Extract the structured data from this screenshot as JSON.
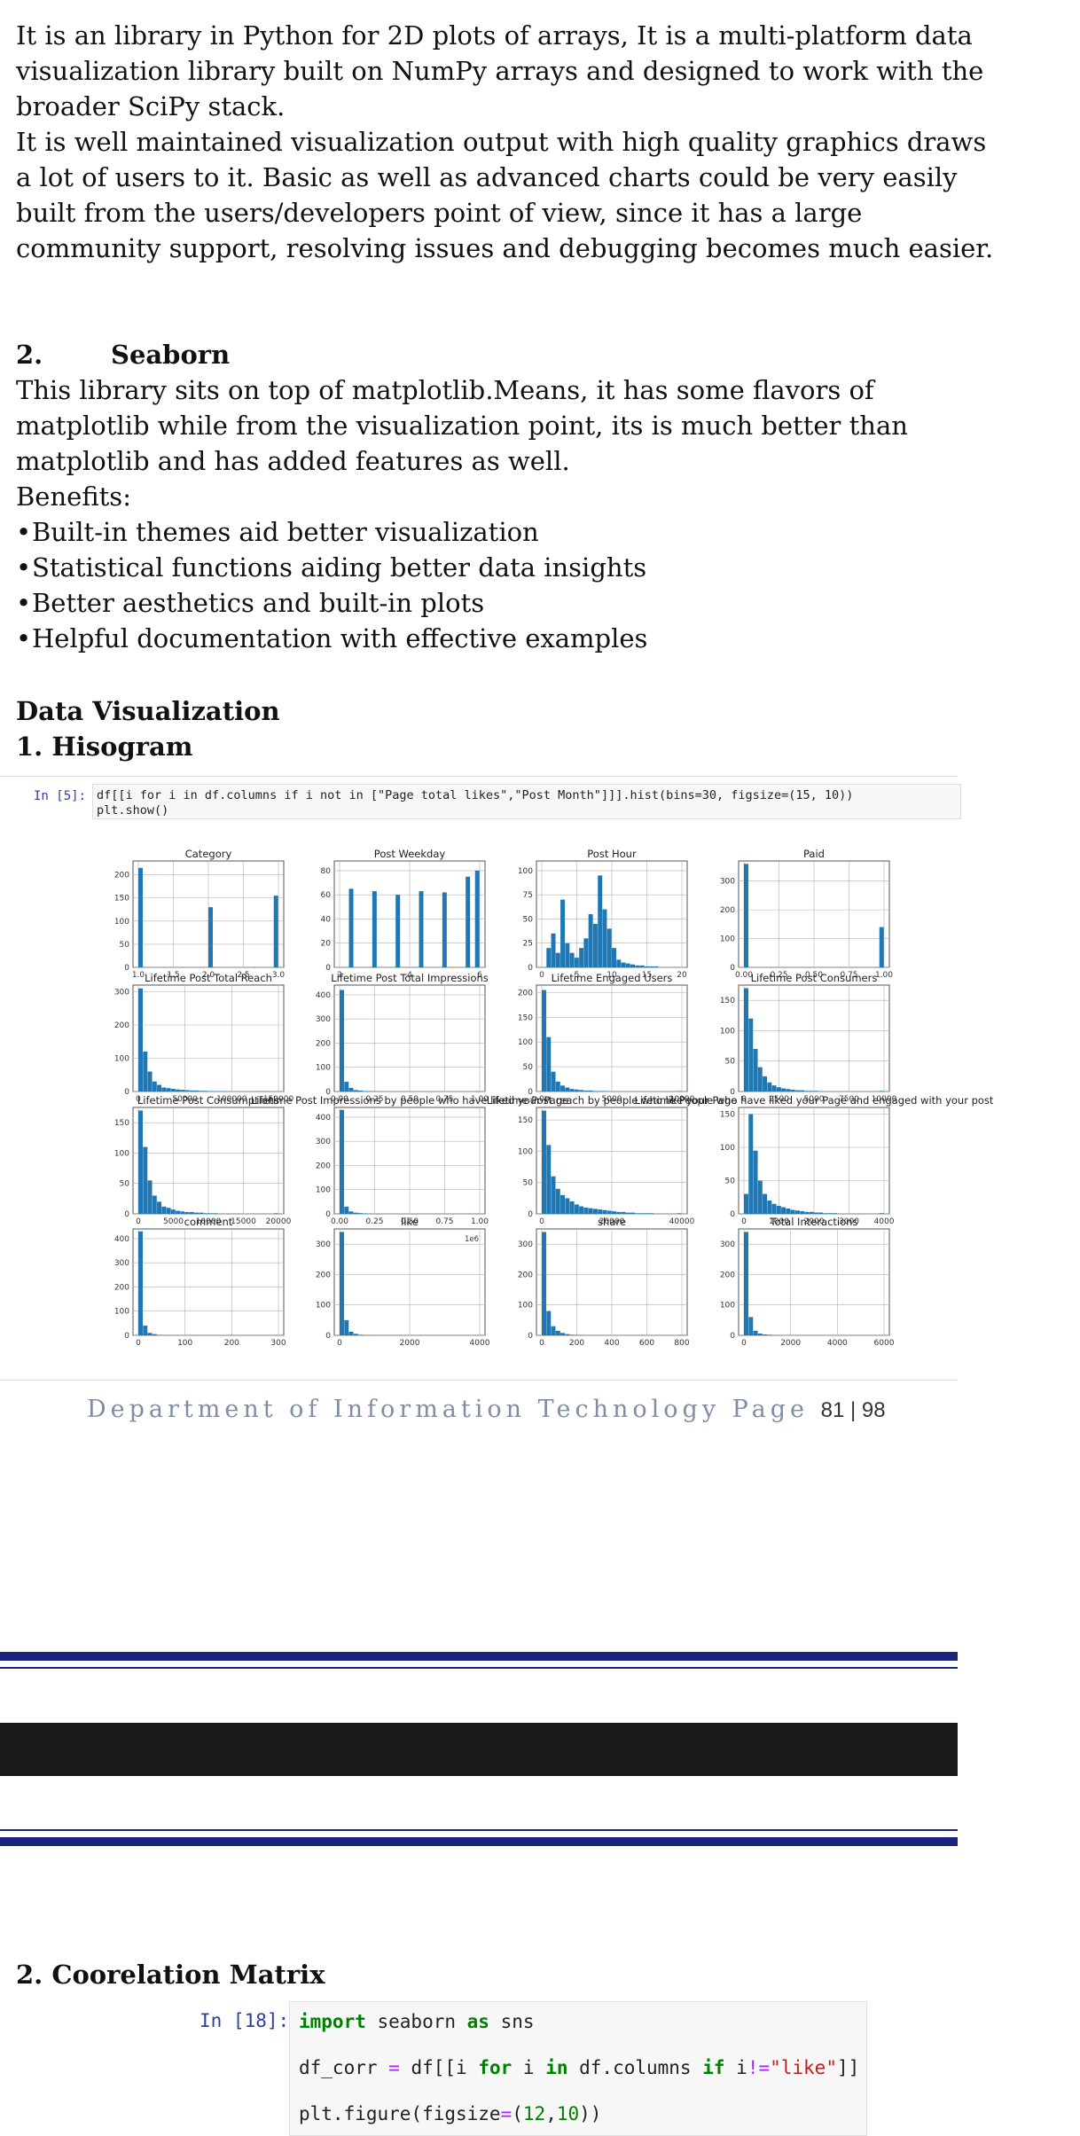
{
  "intro": {
    "lines": [
      "It is an library in Python for 2D plots of arrays, It is a multi-platform data",
      "visualization library built on NumPy arrays and designed to work with the",
      "broader SciPy stack.",
      "It is well maintained visualization output with high quality graphics draws",
      "a lot of users to it. Basic as well as advanced charts could be very easily",
      "built from the users/developers point of view, since it has a large",
      "community support, resolving issues and debugging becomes much easier."
    ]
  },
  "seaborn": {
    "number": "2.",
    "title": "Seaborn",
    "lines": [
      "This library sits on top of matplotlib.Means, it has some flavors of",
      "matplotlib while from the visualization point, its is much better than",
      "matplotlib and has added features as well."
    ],
    "benefits_label": "Benefits:",
    "benefits": [
      "Built-in themes aid better visualization",
      "Statistical functions aiding better data insights",
      "Better aesthetics and built-in plots",
      "Helpful documentation with effective examples"
    ]
  },
  "data_viz": {
    "title": "Data Visualization",
    "subtitle": "1. Hisogram"
  },
  "notebook": {
    "prompt": "In [5]:",
    "code_line1": "df[[i for i in df.columns if i not in [\"Page total likes\",\"Post Month\"]]].hist(bins=30, figsize=(15, 10))",
    "code_line2": "plt.show()"
  },
  "chart_data": {
    "type": "bar",
    "panels": [
      {
        "title": "Category",
        "x_ticks": [
          "1.0",
          "1.5",
          "2.0",
          "2.5",
          "3.0"
        ],
        "y_ticks": [
          "0",
          "50",
          "100",
          "150",
          "200"
        ],
        "ymax": 230,
        "values": [
          215,
          0,
          0,
          0,
          0,
          0,
          0,
          0,
          0,
          0,
          0,
          0,
          0,
          0,
          0,
          130,
          0,
          0,
          0,
          0,
          0,
          0,
          0,
          0,
          0,
          0,
          0,
          0,
          0,
          155
        ]
      },
      {
        "title": "Post Weekday",
        "x_ticks": [
          "2",
          "4",
          "6"
        ],
        "y_ticks": [
          "0",
          "20",
          "40",
          "60",
          "80"
        ],
        "ymax": 88,
        "values": [
          0,
          0,
          65,
          0,
          0,
          0,
          0,
          63,
          0,
          0,
          0,
          0,
          60,
          0,
          0,
          0,
          0,
          63,
          0,
          0,
          0,
          0,
          62,
          0,
          0,
          0,
          0,
          75,
          0,
          80
        ]
      },
      {
        "title": "Post Hour",
        "x_ticks": [
          "0",
          "5",
          "10",
          "15",
          "20"
        ],
        "y_ticks": [
          "0",
          "25",
          "50",
          "75",
          "100"
        ],
        "ymax": 110,
        "values": [
          0,
          20,
          35,
          15,
          70,
          25,
          15,
          10,
          20,
          30,
          55,
          45,
          95,
          60,
          40,
          20,
          8,
          5,
          4,
          3,
          2,
          2,
          1,
          1,
          1,
          0,
          0,
          0,
          0,
          0
        ]
      },
      {
        "title": "Paid",
        "x_ticks": [
          "0.00",
          "0.25",
          "0.50",
          "0.75",
          "1.00"
        ],
        "y_ticks": [
          "0",
          "100",
          "200",
          "300"
        ],
        "ymax": 370,
        "values": [
          360,
          0,
          0,
          0,
          0,
          0,
          0,
          0,
          0,
          0,
          0,
          0,
          0,
          0,
          0,
          0,
          0,
          0,
          0,
          0,
          0,
          0,
          0,
          0,
          0,
          0,
          0,
          0,
          0,
          140
        ]
      },
      {
        "title": "Lifetime Post Total Reach",
        "x_ticks": [
          "0",
          "50000",
          "100000",
          "150000"
        ],
        "y_ticks": [
          "0",
          "100",
          "200",
          "300"
        ],
        "ymax": 320,
        "values": [
          310,
          120,
          60,
          30,
          20,
          12,
          10,
          8,
          6,
          5,
          4,
          3,
          3,
          2,
          2,
          1,
          1,
          1,
          1,
          0,
          0,
          0,
          0,
          0,
          0,
          0,
          1,
          0,
          0,
          0
        ]
      },
      {
        "title": "Lifetime Post Total Impressions",
        "x_ticks": [
          "0.00",
          "0.25",
          "0.50",
          "0.75",
          "1.00"
        ],
        "y_ticks": [
          "0",
          "100",
          "200",
          "300",
          "400"
        ],
        "ymax": 440,
        "values": [
          420,
          40,
          15,
          6,
          4,
          2,
          1,
          1,
          0,
          0,
          0,
          0,
          0,
          0,
          0,
          0,
          0,
          0,
          0,
          0,
          0,
          0,
          0,
          0,
          0,
          0,
          0,
          0,
          0,
          1
        ]
      },
      {
        "title": "Lifetime Engaged Users",
        "x_ticks": [
          "0",
          "5000",
          "10000"
        ],
        "y_ticks": [
          "0",
          "50",
          "100",
          "150",
          "200"
        ],
        "ymax": 215,
        "values": [
          205,
          110,
          40,
          20,
          12,
          8,
          5,
          4,
          3,
          2,
          2,
          1,
          1,
          1,
          0,
          0,
          0,
          0,
          0,
          0,
          0,
          0,
          0,
          0,
          0,
          0,
          0,
          0,
          0,
          1
        ]
      },
      {
        "title": "Lifetime Post Consumers",
        "x_ticks": [
          "0",
          "2500",
          "5000",
          "7500",
          "10000"
        ],
        "y_ticks": [
          "0",
          "50",
          "100",
          "150"
        ],
        "ymax": 175,
        "values": [
          170,
          120,
          70,
          40,
          25,
          15,
          10,
          7,
          5,
          4,
          3,
          2,
          2,
          1,
          1,
          1,
          0,
          0,
          0,
          0,
          0,
          0,
          0,
          0,
          0,
          0,
          0,
          0,
          0,
          1
        ]
      },
      {
        "title": "Lifetime Post Consumptions",
        "x_ticks": [
          "0",
          "5000",
          "10000",
          "15000",
          "20000"
        ],
        "y_ticks": [
          "0",
          "50",
          "100",
          "150"
        ],
        "ymax": 175,
        "values": [
          170,
          110,
          55,
          30,
          20,
          12,
          10,
          7,
          5,
          4,
          3,
          3,
          2,
          2,
          1,
          1,
          1,
          0,
          0,
          0,
          0,
          0,
          0,
          0,
          0,
          0,
          0,
          0,
          0,
          1
        ]
      },
      {
        "title": "Lifetime Post Impressions by people who have liked your Page",
        "x_ticks": [
          "0.00",
          "0.25",
          "0.50",
          "0.75",
          "1.00"
        ],
        "y_ticks": [
          "0",
          "100",
          "200",
          "300",
          "400"
        ],
        "ymax": 440,
        "values": [
          430,
          30,
          10,
          5,
          3,
          2,
          1,
          0,
          0,
          0,
          0,
          0,
          0,
          0,
          0,
          0,
          0,
          0,
          0,
          0,
          0,
          0,
          0,
          0,
          0,
          0,
          0,
          0,
          0,
          1
        ]
      },
      {
        "title": "Lifetime Post reach by people who like your Page",
        "x_ticks": [
          "0",
          "20000",
          "40000"
        ],
        "y_ticks": [
          "0",
          "50",
          "100",
          "150"
        ],
        "ymax": 170,
        "values": [
          165,
          110,
          60,
          40,
          30,
          25,
          20,
          15,
          12,
          10,
          9,
          8,
          7,
          6,
          5,
          4,
          3,
          3,
          2,
          2,
          1,
          1,
          1,
          1,
          0,
          0,
          0,
          0,
          0,
          1
        ]
      },
      {
        "title": "Lifetime People who have liked your Page and engaged with your post",
        "x_ticks": [
          "0",
          "1000",
          "2000",
          "3000",
          "4000"
        ],
        "y_ticks": [
          "0",
          "50",
          "100",
          "150"
        ],
        "ymax": 160,
        "values": [
          30,
          150,
          95,
          50,
          30,
          20,
          15,
          12,
          10,
          8,
          6,
          5,
          4,
          3,
          3,
          2,
          2,
          1,
          1,
          1,
          0,
          0,
          0,
          0,
          0,
          0,
          0,
          0,
          0,
          1
        ]
      },
      {
        "title": "comment",
        "x_ticks": [
          "0",
          "100",
          "200",
          "300"
        ],
        "y_ticks": [
          "0",
          "100",
          "200",
          "300",
          "400"
        ],
        "ymax": 440,
        "values": [
          430,
          40,
          10,
          5,
          2,
          1,
          1,
          0,
          0,
          0,
          0,
          0,
          0,
          0,
          0,
          0,
          0,
          0,
          0,
          0,
          0,
          0,
          0,
          0,
          0,
          0,
          0,
          0,
          0,
          1
        ]
      },
      {
        "title": "like",
        "x_ticks": [
          "0",
          "2000",
          "4000"
        ],
        "y_ticks": [
          "0",
          "100",
          "200",
          "300"
        ],
        "ymax": 350,
        "values": [
          340,
          50,
          12,
          5,
          2,
          1,
          1,
          0,
          0,
          0,
          0,
          0,
          0,
          0,
          0,
          0,
          0,
          0,
          0,
          0,
          0,
          0,
          0,
          0,
          0,
          0,
          0,
          0,
          0,
          1
        ]
      },
      {
        "title": "share",
        "x_ticks": [
          "0",
          "200",
          "400",
          "600",
          "800"
        ],
        "y_ticks": [
          "0",
          "100",
          "200",
          "300"
        ],
        "ymax": 350,
        "values": [
          340,
          80,
          30,
          15,
          8,
          4,
          2,
          1,
          1,
          0,
          0,
          0,
          0,
          0,
          0,
          0,
          0,
          0,
          0,
          0,
          0,
          0,
          0,
          0,
          0,
          0,
          0,
          0,
          0,
          1
        ]
      },
      {
        "title": "Total Interactions",
        "x_ticks": [
          "0",
          "2000",
          "4000",
          "6000"
        ],
        "y_ticks": [
          "0",
          "100",
          "200",
          "300"
        ],
        "ymax": 350,
        "values": [
          340,
          60,
          15,
          6,
          3,
          2,
          1,
          0,
          0,
          0,
          0,
          0,
          0,
          0,
          0,
          0,
          0,
          0,
          0,
          0,
          0,
          0,
          0,
          0,
          0,
          0,
          0,
          0,
          0,
          1
        ]
      }
    ],
    "colors": {
      "bar": "#1f77b4",
      "grid": "#b0b0b0"
    },
    "grid": true,
    "extra_label": "1e6"
  },
  "footer": {
    "text": "Department of Information Technology Page",
    "page": "81 | 98"
  },
  "section2": {
    "title": "2. Coorelation Matrix",
    "prompt": "In [18]:",
    "code": [
      {
        "parts": [
          {
            "t": "import",
            "c": "kw"
          },
          {
            "t": " seaborn ",
            "c": ""
          },
          {
            "t": "as",
            "c": "kw"
          },
          {
            "t": " sns",
            "c": ""
          }
        ]
      },
      {
        "parts": [
          {
            "t": "df_corr ",
            "c": ""
          },
          {
            "t": "=",
            "c": "op"
          },
          {
            "t": " df[[i ",
            "c": ""
          },
          {
            "t": "for",
            "c": "kw"
          },
          {
            "t": " i ",
            "c": ""
          },
          {
            "t": "in",
            "c": "kw"
          },
          {
            "t": " df.columns ",
            "c": ""
          },
          {
            "t": "if",
            "c": "kw"
          },
          {
            "t": " i",
            "c": ""
          },
          {
            "t": "!=",
            "c": "op"
          },
          {
            "t": "\"like\"",
            "c": "str"
          },
          {
            "t": "]]",
            "c": ""
          }
        ]
      },
      {
        "parts": [
          {
            "t": "plt.figure(figsize",
            "c": ""
          },
          {
            "t": "=",
            "c": "op"
          },
          {
            "t": "(",
            "c": ""
          },
          {
            "t": "12",
            "c": "num"
          },
          {
            "t": ",",
            "c": ""
          },
          {
            "t": "10",
            "c": "num"
          },
          {
            "t": "))",
            "c": ""
          }
        ]
      }
    ]
  }
}
